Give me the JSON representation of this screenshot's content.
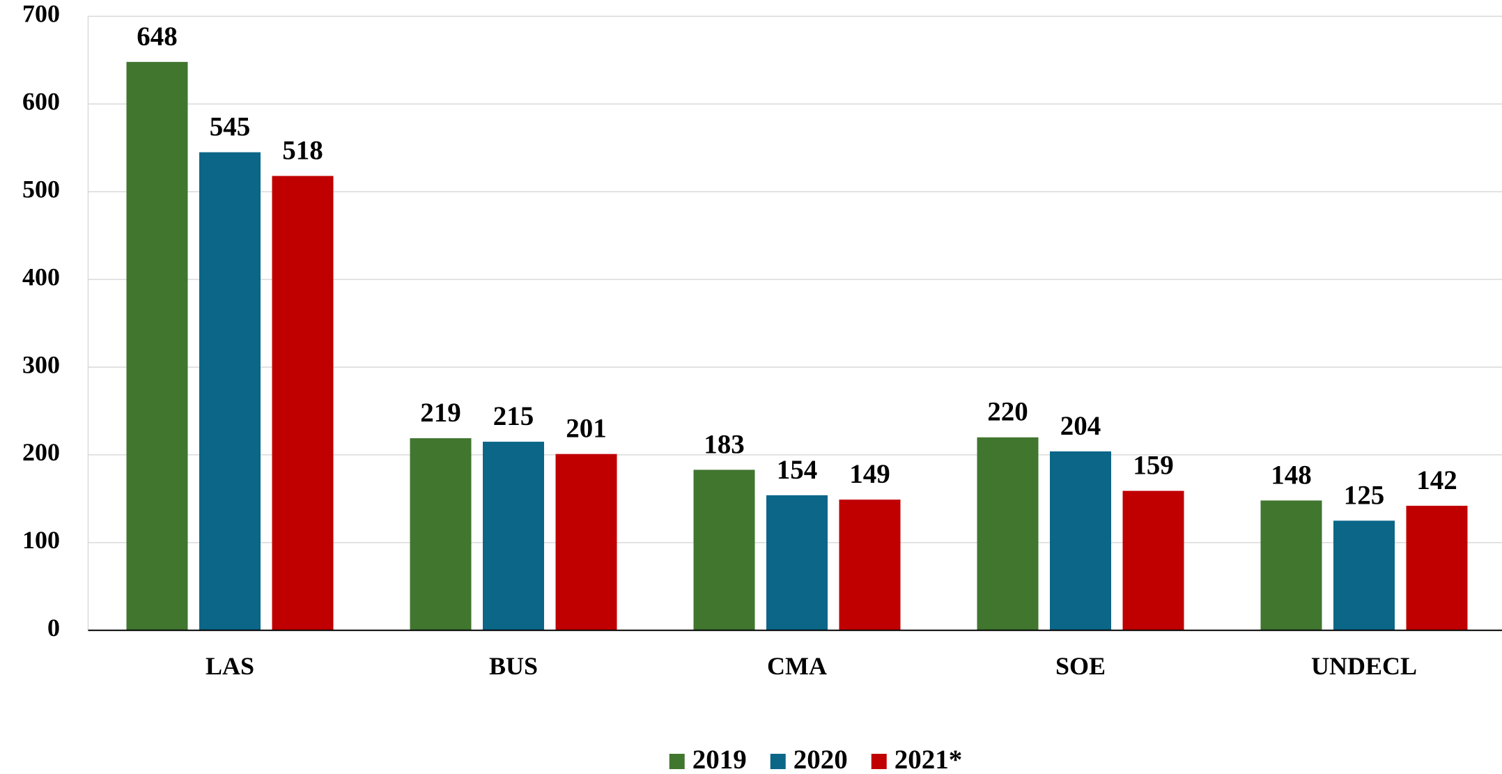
{
  "chart_data": {
    "type": "bar",
    "categories": [
      "LAS",
      "BUS",
      "CMA",
      "SOE",
      "UNDECL"
    ],
    "series": [
      {
        "name": "2019",
        "color": "#41762f",
        "values": [
          648,
          219,
          183,
          220,
          148
        ]
      },
      {
        "name": "2020",
        "color": "#0b6688",
        "values": [
          545,
          215,
          154,
          204,
          125
        ]
      },
      {
        "name": "2021*",
        "color": "#c00000",
        "values": [
          518,
          201,
          149,
          159,
          142
        ]
      }
    ],
    "ylim": [
      0,
      700
    ],
    "yticks": [
      0,
      100,
      200,
      300,
      400,
      500,
      600,
      700
    ],
    "grid": true,
    "legend": "bottom"
  }
}
